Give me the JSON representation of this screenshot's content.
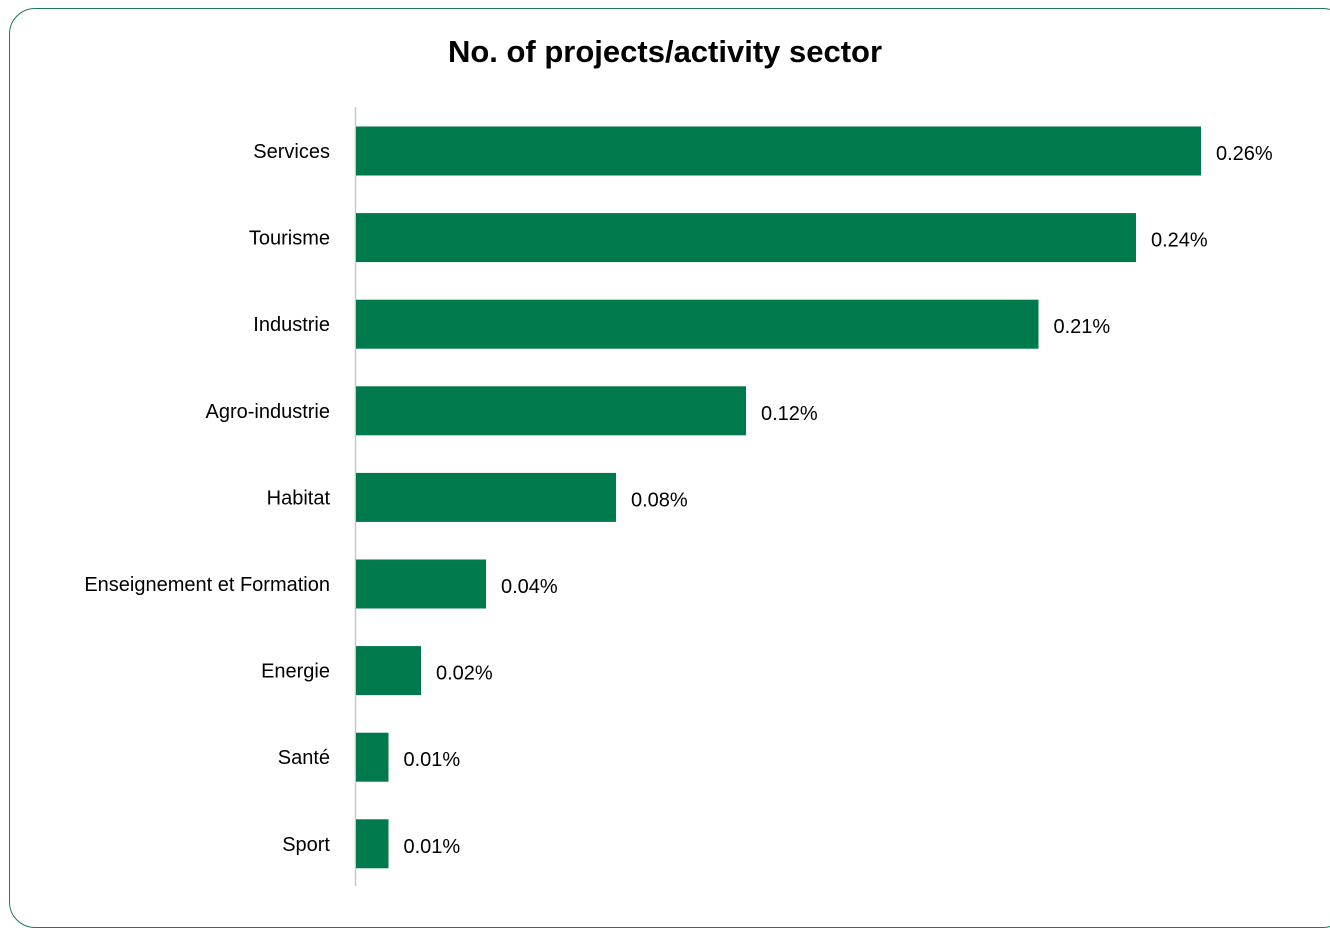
{
  "chart_data": {
    "type": "bar",
    "orientation": "horizontal",
    "title": "No. of projects/activity sector",
    "xlabel": "",
    "ylabel": "",
    "categories": [
      "Services",
      "Tourisme",
      "Industrie",
      "Agro-industrie",
      "Habitat",
      "Enseignement et Formation",
      "Energie",
      "Santé",
      "Sport"
    ],
    "values": [
      0.26,
      0.24,
      0.21,
      0.12,
      0.08,
      0.04,
      0.02,
      0.01,
      0.01
    ],
    "data_labels": [
      "0.26%",
      "0.24%",
      "0.21%",
      "0.12%",
      "0.08%",
      "0.04%",
      "0.02%",
      "0.01%",
      "0.01%"
    ],
    "unit": "%",
    "bar_color": "#007a4d",
    "frame_color": "#1f7a5a",
    "grid": false,
    "legend": "none"
  }
}
